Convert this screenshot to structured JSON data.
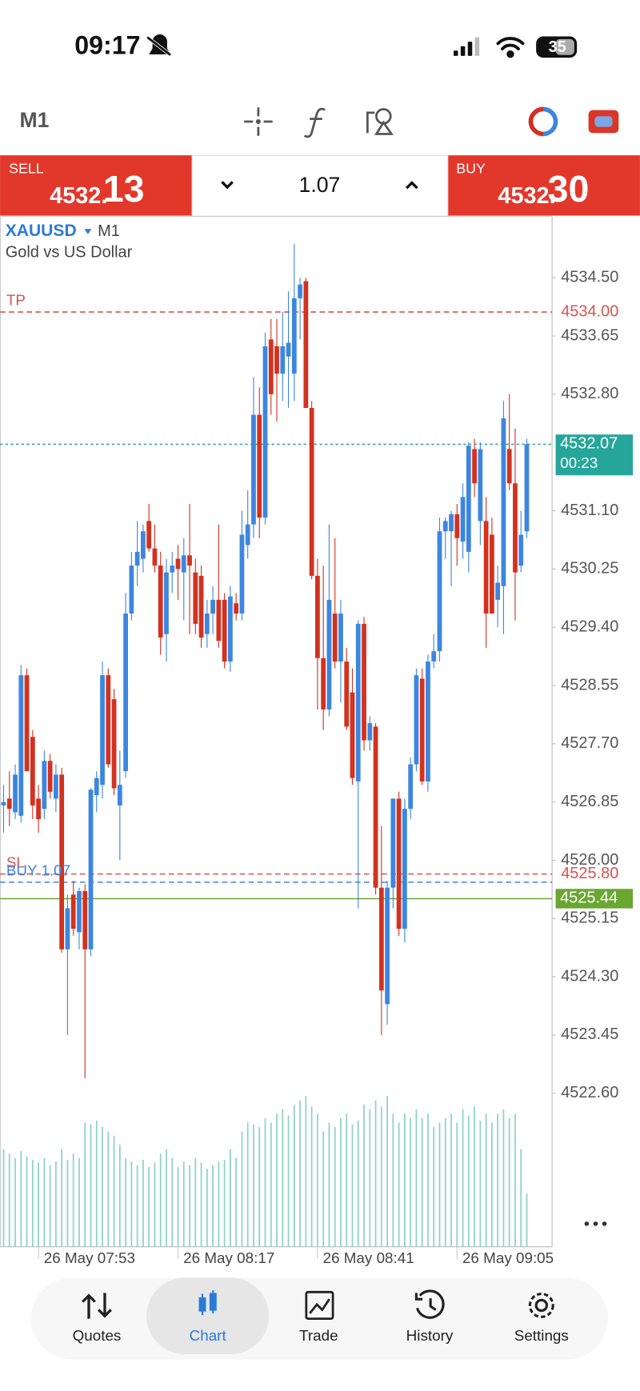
{
  "status_bar": {
    "time": "09:17",
    "battery": "35"
  },
  "toolbar": {
    "timeframe": "M1"
  },
  "trade_panel": {
    "sell": {
      "label": "SELL",
      "price_main": "4532.",
      "price_big": "13"
    },
    "volume": "1.07",
    "buy": {
      "label": "BUY",
      "price_main": "4532.",
      "price_big": "30"
    }
  },
  "chart_data": {
    "type": "candlestick",
    "symbol": "XAUUSD",
    "timeframe": "M1",
    "subtitle": "Gold vs US Dollar",
    "up_color": "#3d86e0",
    "down_color": "#d2321f",
    "volume_color": "#8fd3c4",
    "ylim": [
      4520.36,
      4535.38
    ],
    "yticks": [
      {
        "value": 4534.5,
        "label": "4534.50"
      },
      4533.65,
      {
        "value": 4532.8,
        "label": "4532.80"
      },
      {
        "value": 4531.1,
        "label": "4531.10"
      },
      4530.25,
      {
        "value": 4529.4,
        "label": "4529.40"
      },
      4528.55,
      {
        "value": 4527.7,
        "label": "4527.70"
      },
      4526.85,
      {
        "value": 4526.0,
        "label": "4526.00"
      },
      4525.15,
      {
        "value": 4524.3,
        "label": "4524.30"
      },
      4523.45,
      {
        "value": 4522.6,
        "label": "4522.60"
      }
    ],
    "categories": [
      null,
      null,
      null,
      null,
      null,
      null,
      "26 May 07:53",
      null,
      null,
      null,
      null,
      null,
      null,
      null,
      null,
      null,
      null,
      null,
      null,
      null,
      null,
      null,
      null,
      null,
      null,
      null,
      null,
      null,
      null,
      null,
      "26 May 08:17",
      null,
      null,
      null,
      null,
      null,
      null,
      null,
      null,
      null,
      null,
      null,
      null,
      null,
      null,
      null,
      null,
      null,
      null,
      null,
      null,
      null,
      null,
      null,
      "26 May 08:41",
      null,
      null,
      null,
      null,
      null,
      null,
      null,
      null,
      null,
      null,
      null,
      null,
      null,
      null,
      null,
      null,
      null,
      null,
      null,
      null,
      null,
      null,
      null,
      "26 May 09:05",
      null,
      null,
      null,
      null,
      null,
      null,
      null,
      null,
      null,
      null,
      null,
      null
    ],
    "ohlc": [
      [
        4526.8,
        4527.1,
        4526.4,
        4526.85
      ],
      [
        4526.9,
        4527.3,
        4526.5,
        4526.75
      ],
      [
        4526.7,
        4527.4,
        4526.6,
        4527.25
      ],
      [
        4526.65,
        4528.85,
        4526.55,
        4528.7
      ],
      [
        4528.7,
        4528.8,
        4527.3,
        4527.3
      ],
      [
        4527.8,
        4527.9,
        4526.6,
        4526.8
      ],
      [
        4526.9,
        4527.1,
        4526.4,
        4526.6
      ],
      [
        4526.75,
        4527.6,
        4526.6,
        4527.45
      ],
      [
        4527.45,
        4527.55,
        4526.9,
        4527.0
      ],
      [
        4526.9,
        4527.4,
        4526.7,
        4527.25
      ],
      [
        4527.25,
        4527.35,
        4524.65,
        4524.7
      ],
      [
        4524.7,
        4525.5,
        4523.45,
        4525.3
      ],
      [
        4525.5,
        4525.7,
        4524.9,
        4525.0
      ],
      [
        4524.95,
        4525.6,
        4524.7,
        4525.55
      ],
      [
        4525.55,
        4525.65,
        4522.82,
        4524.7
      ],
      [
        4524.7,
        4527.05,
        4524.6,
        4527.03
      ],
      [
        4526.95,
        4527.3,
        4526.7,
        4527.2
      ],
      [
        4527.1,
        4528.9,
        4526.9,
        4528.7
      ],
      [
        4528.7,
        4528.8,
        4527.35,
        4527.4
      ],
      [
        4528.35,
        4528.5,
        4526.95,
        4527.05
      ],
      [
        4526.8,
        4527.6,
        4526.0,
        4527.1
      ],
      [
        4527.3,
        4529.9,
        4527.2,
        4529.6
      ],
      [
        4529.6,
        4530.5,
        4529.5,
        4530.3
      ],
      [
        4530.3,
        4530.95,
        4530.0,
        4530.5
      ],
      [
        4530.4,
        4530.9,
        4530.2,
        4530.8
      ],
      [
        4530.95,
        4531.2,
        4530.5,
        4530.55
      ],
      [
        4530.55,
        4530.9,
        4530.2,
        4530.3
      ],
      [
        4530.3,
        4530.5,
        4529.0,
        4529.25
      ],
      [
        4529.3,
        4530.4,
        4528.9,
        4530.2
      ],
      [
        4530.2,
        4530.5,
        4529.9,
        4530.3
      ],
      [
        4530.4,
        4530.6,
        4529.8,
        4530.25
      ],
      [
        4530.2,
        4530.7,
        4529.5,
        4530.45
      ],
      [
        4530.45,
        4531.2,
        4529.3,
        4530.3
      ],
      [
        4530.2,
        4530.4,
        4529.3,
        4529.45
      ],
      [
        4530.15,
        4530.3,
        4529.1,
        4529.25
      ],
      [
        4529.3,
        4529.8,
        4529.1,
        4529.6
      ],
      [
        4529.6,
        4530.0,
        4529.3,
        4529.8
      ],
      [
        4529.8,
        4530.9,
        4529.1,
        4529.2
      ],
      [
        4529.8,
        4529.9,
        4528.8,
        4528.9
      ],
      [
        4528.9,
        4530.0,
        4528.75,
        4529.85
      ],
      [
        4529.75,
        4529.9,
        4529.5,
        4529.6
      ],
      [
        4529.6,
        4531.1,
        4529.5,
        4530.75
      ],
      [
        4530.6,
        4531.4,
        4530.4,
        4530.9
      ],
      [
        4530.9,
        4533.05,
        4530.7,
        4532.5
      ],
      [
        4532.5,
        4532.9,
        4530.7,
        4531.0
      ],
      [
        4531.0,
        4533.7,
        4530.9,
        4533.5
      ],
      [
        4533.6,
        4533.9,
        4532.5,
        4532.8
      ],
      [
        4533.5,
        4533.9,
        4532.4,
        4533.1
      ],
      [
        4533.1,
        4534.0,
        4532.7,
        4533.5
      ],
      [
        4533.35,
        4534.3,
        4532.6,
        4533.55
      ],
      [
        4533.1,
        4534.99,
        4532.7,
        4534.2
      ],
      [
        4534.2,
        4534.5,
        4533.6,
        4534.4
      ],
      [
        4534.45,
        4534.5,
        4532.6,
        4532.6
      ],
      [
        4532.6,
        4532.7,
        4530.1,
        4530.15
      ],
      [
        4530.15,
        4530.4,
        4528.2,
        4528.95
      ],
      [
        4528.95,
        4530.3,
        4527.9,
        4528.2
      ],
      [
        4528.2,
        4530.9,
        4528.1,
        4529.8
      ],
      [
        4529.6,
        4530.7,
        4528.8,
        4528.9
      ],
      [
        4528.9,
        4529.8,
        4528.3,
        4529.6
      ],
      [
        4528.9,
        4529.1,
        4527.9,
        4527.95
      ],
      [
        4528.45,
        4528.8,
        4527.1,
        4527.2
      ],
      [
        4527.15,
        4529.5,
        4525.3,
        4529.45
      ],
      [
        4529.45,
        4529.55,
        4527.6,
        4527.75
      ],
      [
        4527.75,
        4528.1,
        4527.6,
        4528.0
      ],
      [
        4527.95,
        4528.0,
        4525.5,
        4525.6
      ],
      [
        4525.6,
        4526.5,
        4523.45,
        4524.1
      ],
      [
        4523.9,
        4525.7,
        4523.6,
        4525.6
      ],
      [
        4525.6,
        4526.9,
        4525.3,
        4526.9
      ],
      [
        4526.9,
        4527.0,
        4524.9,
        4525.0
      ],
      [
        4525.0,
        4526.9,
        4524.8,
        4526.75
      ],
      [
        4526.75,
        4527.5,
        4526.6,
        4527.4
      ],
      [
        4527.4,
        4528.8,
        4527.3,
        4528.7
      ],
      [
        4528.65,
        4528.8,
        4527.1,
        4527.15
      ],
      [
        4527.15,
        4529.0,
        4527.0,
        4528.9
      ],
      [
        4528.9,
        4529.3,
        4528.8,
        4529.05
      ],
      [
        4529.05,
        4531.0,
        4528.9,
        4530.8
      ],
      [
        4530.8,
        4531.0,
        4530.4,
        4530.95
      ],
      [
        4530.8,
        4531.1,
        4530.0,
        4531.05
      ],
      [
        4531.05,
        4531.2,
        4530.3,
        4530.7
      ],
      [
        4530.65,
        4531.5,
        4530.4,
        4531.3
      ],
      [
        4530.5,
        4532.1,
        4530.2,
        4532.05
      ],
      [
        4532.0,
        4532.15,
        4531.3,
        4531.5
      ],
      [
        4530.95,
        4532.1,
        4530.6,
        4532.0
      ],
      [
        4530.95,
        4531.3,
        4529.1,
        4529.6
      ],
      [
        4530.75,
        4531.0,
        4529.6,
        4529.6
      ],
      [
        4529.8,
        4530.3,
        4529.4,
        4530.05
      ],
      [
        4530.0,
        4532.7,
        4529.3,
        4532.45
      ],
      [
        4532.0,
        4532.8,
        4531.4,
        4531.5
      ],
      [
        4531.5,
        4532.3,
        4529.5,
        4530.2
      ],
      [
        4530.3,
        4531.1,
        4530.2,
        4530.75
      ],
      [
        4530.8,
        4532.15,
        4530.7,
        4532.07
      ]
    ],
    "volume": [
      110,
      105,
      100,
      108,
      102,
      98,
      95,
      100,
      92,
      96,
      110,
      98,
      105,
      100,
      140,
      138,
      142,
      135,
      130,
      125,
      115,
      100,
      96,
      92,
      98,
      90,
      95,
      105,
      110,
      100,
      90,
      96,
      92,
      100,
      95,
      88,
      92,
      96,
      98,
      110,
      100,
      130,
      140,
      138,
      135,
      145,
      140,
      150,
      155,
      148,
      160,
      165,
      170,
      158,
      150,
      130,
      140,
      135,
      145,
      150,
      138,
      142,
      160,
      155,
      165,
      158,
      170,
      150,
      140,
      150,
      145,
      155,
      145,
      150,
      135,
      140,
      145,
      150,
      140,
      155,
      148,
      158,
      142,
      150,
      140,
      150,
      155,
      145,
      150,
      110,
      60
    ],
    "levels": [
      {
        "label": "TP",
        "value": 4534.0,
        "value_label": "4534.00",
        "color": "#d9534f",
        "style": "dashed"
      },
      {
        "label": "SL",
        "value": 4525.8,
        "value_label": "4525.80",
        "color": "#d9534f",
        "style": "dashed"
      },
      {
        "label": "BUY 1.07",
        "value": 4525.68,
        "color": "#3d86e0",
        "style": "dashed"
      },
      {
        "value": 4532.07,
        "value_label": "4532.07",
        "timer": "00:23",
        "color": "#26a69a",
        "style": "dotted",
        "box": true
      },
      {
        "value": 4525.44,
        "value_label": "4525.44",
        "color": "#6aa632",
        "style": "solid",
        "box": true
      }
    ]
  },
  "nav": {
    "active": 1,
    "items": [
      {
        "label": "Quotes"
      },
      {
        "label": "Chart"
      },
      {
        "label": "Trade"
      },
      {
        "label": "History"
      },
      {
        "label": "Settings"
      }
    ]
  }
}
